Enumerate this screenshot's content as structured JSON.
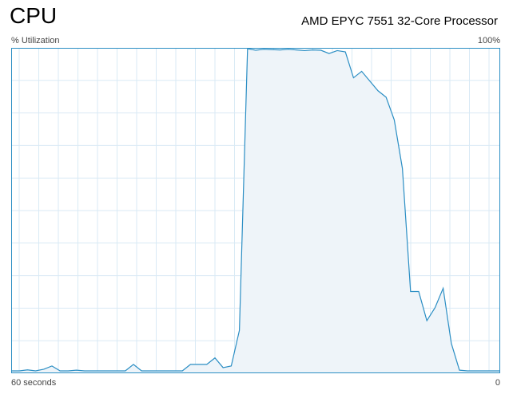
{
  "header": {
    "title": "CPU",
    "processor": "AMD EPYC 7551 32-Core Processor"
  },
  "graph": {
    "y_label": "% Utilization",
    "y_max_label": "100%",
    "x_label": "60 seconds",
    "x_end_label": "0",
    "colors": {
      "line": "#2b8ec4",
      "fill": "#eef4f9",
      "grid": "#d9eaf5",
      "border": "#2b8ec4"
    }
  },
  "chart_data": {
    "type": "area",
    "ylim": [
      0,
      100
    ],
    "xlim": [
      60,
      0
    ],
    "grid": true,
    "x": [
      60,
      59,
      58,
      57,
      56,
      55,
      54,
      53,
      52,
      51,
      50,
      49,
      48,
      47,
      46,
      45,
      44,
      43,
      42,
      41,
      40,
      39,
      38,
      37,
      36,
      35,
      34,
      33,
      32,
      31,
      30,
      29,
      28,
      27,
      26,
      25,
      24,
      23,
      22,
      21,
      20,
      19,
      18,
      17,
      16,
      15,
      14,
      13,
      12,
      11,
      10,
      9,
      8,
      7,
      6,
      5,
      4,
      3,
      2,
      1,
      0
    ],
    "values": [
      0.5,
      0.5,
      0.8,
      0.5,
      1,
      2,
      0.5,
      0.5,
      0.7,
      0.5,
      0.5,
      0.5,
      0.5,
      0.5,
      0.5,
      2.5,
      0.5,
      0.5,
      0.5,
      0.5,
      0.5,
      0.5,
      2.5,
      2.5,
      2.5,
      4.5,
      1.5,
      2,
      13,
      100,
      99.5,
      99.8,
      99.7,
      99.6,
      99.8,
      99.6,
      99.4,
      99.6,
      99.5,
      98.5,
      99.4,
      99,
      91,
      93,
      90,
      87,
      85,
      78,
      63,
      25,
      25,
      16,
      20,
      26,
      9,
      0.7,
      0.5,
      0.5,
      0.5,
      0.5,
      0.5
    ]
  }
}
